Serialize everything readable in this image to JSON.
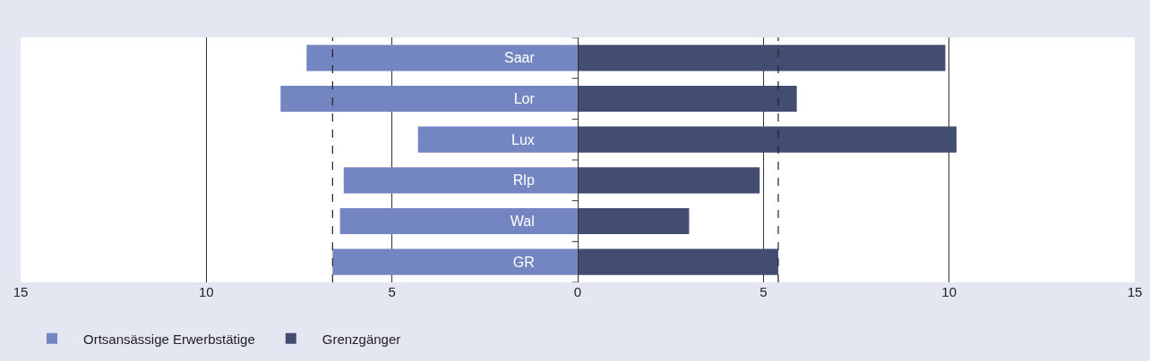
{
  "chart_data": {
    "type": "bar",
    "orientation": "horizontal",
    "categories": [
      "Saar",
      "Lor",
      "Lux",
      "Rlp",
      "Wal",
      "GR"
    ],
    "series": [
      {
        "name": "Ortsansässige Erwerbstätige",
        "color": "#7486c2",
        "values": [
          -7.3,
          -8.0,
          -4.3,
          -6.3,
          -6.4,
          -6.6
        ]
      },
      {
        "name": "Grenzgänger",
        "color": "#434d72",
        "values": [
          9.9,
          5.9,
          10.2,
          4.9,
          3.0,
          5.4
        ]
      }
    ],
    "xlim": [
      -15,
      15
    ],
    "xticks": [
      {
        "value": -15,
        "label": "15"
      },
      {
        "value": -10,
        "label": "10"
      },
      {
        "value": -5,
        "label": "5"
      },
      0,
      5,
      10,
      15
    ],
    "ref_lines": [
      {
        "axis": "x",
        "value": -6.6,
        "color": "#222222",
        "line_style": "dashed"
      },
      {
        "axis": "x",
        "value": 5.4,
        "color": "#222222",
        "line_style": "dashed"
      }
    ],
    "stacked": true,
    "grid": "x",
    "legend": "bottom left"
  }
}
